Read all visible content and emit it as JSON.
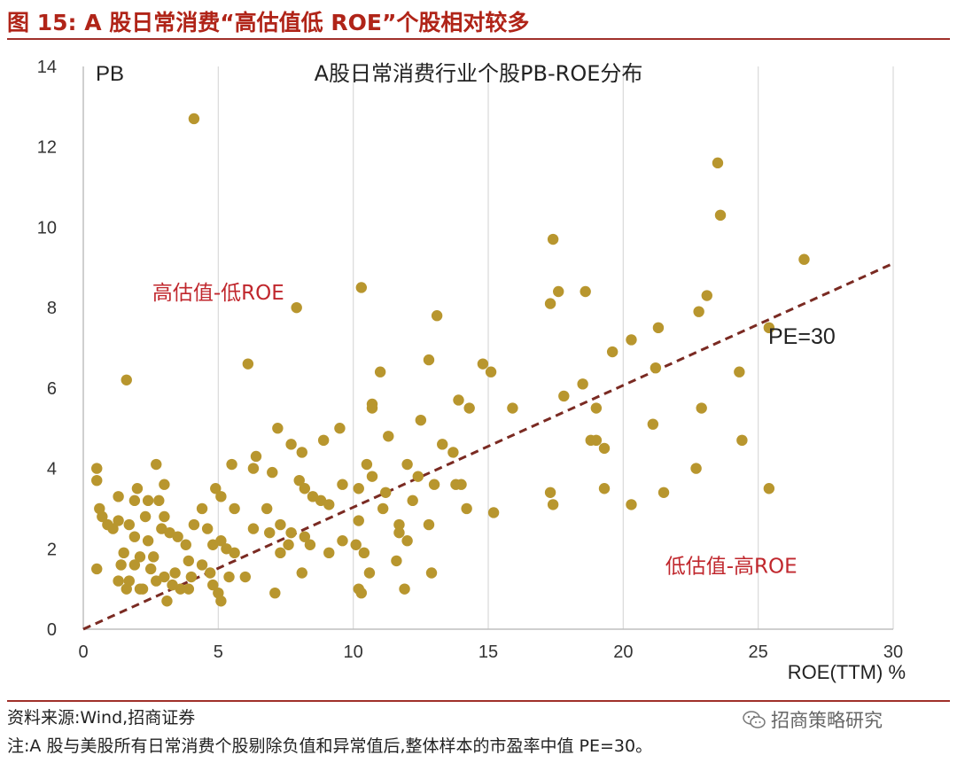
{
  "figure": {
    "title": "图 15:  A 股日常消费“高估值低 ROE”个股相对较多",
    "source": "资料来源:Wind,招商证券",
    "note": "注:A 股与美股所有日常消费个股剔除负值和异常值后,整体样本的市盈率中值 PE=30。",
    "watermark": "招商策略研究",
    "watermark_icon": "wechat-icon"
  },
  "colors": {
    "title": "#b02418",
    "rule": "#a0302a",
    "point": "#b8962e",
    "trend": "#7a2a22",
    "annotation": "#c0272d",
    "grid": "#d9d9d9"
  },
  "chart_data": {
    "type": "scatter",
    "title": "A股日常消费行业个股PB-ROE分布",
    "ylabel": "PB",
    "xlabel": "ROE(TTM) %",
    "xlim": [
      0,
      30
    ],
    "ylim": [
      0,
      14
    ],
    "xticks": [
      0,
      5,
      10,
      15,
      20,
      25,
      30
    ],
    "yticks": [
      0,
      2,
      4,
      6,
      8,
      10,
      12,
      14
    ],
    "grid": "vertical",
    "trendline": {
      "label": "PE=30",
      "style": "dashed",
      "from": [
        0,
        0
      ],
      "to": [
        30,
        9.1
      ]
    },
    "annotations": [
      {
        "text": "高估值-低ROE",
        "x": 5,
        "y": 8.2
      },
      {
        "text": "低估值-高ROE",
        "x": 24,
        "y": 1.4
      }
    ],
    "points": [
      [
        4.1,
        12.7
      ],
      [
        23.5,
        11.6
      ],
      [
        23.6,
        10.3
      ],
      [
        26.7,
        9.2
      ],
      [
        17.4,
        9.7
      ],
      [
        10.3,
        8.5
      ],
      [
        17.6,
        8.4
      ],
      [
        18.6,
        8.4
      ],
      [
        23.1,
        8.3
      ],
      [
        7.9,
        8.0
      ],
      [
        17.3,
        8.1
      ],
      [
        13.1,
        7.8
      ],
      [
        22.8,
        7.9
      ],
      [
        25.4,
        7.5
      ],
      [
        21.3,
        7.5
      ],
      [
        20.3,
        7.2
      ],
      [
        19.6,
        6.9
      ],
      [
        12.8,
        6.7
      ],
      [
        6.1,
        6.6
      ],
      [
        11.0,
        6.4
      ],
      [
        14.8,
        6.6
      ],
      [
        15.1,
        6.4
      ],
      [
        21.2,
        6.5
      ],
      [
        24.3,
        6.4
      ],
      [
        1.6,
        6.2
      ],
      [
        18.5,
        6.1
      ],
      [
        17.8,
        5.8
      ],
      [
        13.9,
        5.7
      ],
      [
        10.7,
        5.6
      ],
      [
        10.7,
        5.5
      ],
      [
        14.3,
        5.5
      ],
      [
        15.9,
        5.5
      ],
      [
        19.0,
        5.5
      ],
      [
        22.9,
        5.5
      ],
      [
        12.5,
        5.2
      ],
      [
        21.1,
        5.1
      ],
      [
        7.2,
        5.0
      ],
      [
        9.5,
        5.0
      ],
      [
        11.3,
        4.8
      ],
      [
        8.9,
        4.7
      ],
      [
        7.7,
        4.6
      ],
      [
        13.3,
        4.6
      ],
      [
        18.8,
        4.7
      ],
      [
        19.0,
        4.7
      ],
      [
        19.3,
        4.5
      ],
      [
        24.4,
        4.7
      ],
      [
        6.4,
        4.3
      ],
      [
        8.1,
        4.4
      ],
      [
        13.7,
        4.4
      ],
      [
        2.7,
        4.1
      ],
      [
        5.5,
        4.1
      ],
      [
        10.5,
        4.1
      ],
      [
        12.0,
        4.1
      ],
      [
        0.5,
        4.0
      ],
      [
        6.3,
        4.0
      ],
      [
        22.7,
        4.0
      ],
      [
        7.0,
        3.9
      ],
      [
        0.5,
        3.7
      ],
      [
        8.0,
        3.7
      ],
      [
        10.7,
        3.8
      ],
      [
        12.4,
        3.8
      ],
      [
        2.0,
        3.5
      ],
      [
        3.0,
        3.6
      ],
      [
        4.9,
        3.5
      ],
      [
        8.2,
        3.5
      ],
      [
        9.6,
        3.6
      ],
      [
        10.2,
        3.5
      ],
      [
        13.0,
        3.6
      ],
      [
        13.8,
        3.6
      ],
      [
        14.0,
        3.6
      ],
      [
        19.3,
        3.5
      ],
      [
        25.4,
        3.5
      ],
      [
        8.5,
        3.3
      ],
      [
        11.2,
        3.4
      ],
      [
        12.2,
        3.2
      ],
      [
        17.3,
        3.4
      ],
      [
        21.5,
        3.4
      ],
      [
        1.3,
        3.3
      ],
      [
        1.9,
        3.2
      ],
      [
        2.4,
        3.2
      ],
      [
        2.8,
        3.2
      ],
      [
        5.1,
        3.3
      ],
      [
        8.8,
        3.2
      ],
      [
        9.1,
        3.1
      ],
      [
        17.4,
        3.1
      ],
      [
        20.3,
        3.1
      ],
      [
        0.6,
        3.0
      ],
      [
        4.4,
        3.0
      ],
      [
        5.6,
        3.0
      ],
      [
        6.8,
        3.0
      ],
      [
        11.1,
        3.0
      ],
      [
        14.2,
        3.0
      ],
      [
        15.2,
        2.9
      ],
      [
        0.7,
        2.8
      ],
      [
        2.3,
        2.8
      ],
      [
        3.0,
        2.8
      ],
      [
        4.1,
        2.6
      ],
      [
        4.6,
        2.5
      ],
      [
        6.3,
        2.5
      ],
      [
        6.9,
        2.4
      ],
      [
        7.3,
        2.6
      ],
      [
        10.2,
        2.7
      ],
      [
        11.7,
        2.6
      ],
      [
        12.8,
        2.6
      ],
      [
        0.9,
        2.6
      ],
      [
        1.1,
        2.5
      ],
      [
        1.3,
        2.7
      ],
      [
        1.7,
        2.6
      ],
      [
        2.9,
        2.5
      ],
      [
        3.2,
        2.4
      ],
      [
        3.5,
        2.3
      ],
      [
        5.1,
        2.2
      ],
      [
        7.7,
        2.4
      ],
      [
        8.2,
        2.3
      ],
      [
        9.6,
        2.2
      ],
      [
        11.7,
        2.4
      ],
      [
        1.9,
        2.3
      ],
      [
        2.4,
        2.2
      ],
      [
        3.8,
        2.1
      ],
      [
        4.8,
        2.1
      ],
      [
        5.3,
        2.0
      ],
      [
        7.6,
        2.1
      ],
      [
        8.4,
        2.1
      ],
      [
        10.1,
        2.1
      ],
      [
        12.0,
        2.2
      ],
      [
        1.5,
        1.9
      ],
      [
        2.1,
        1.8
      ],
      [
        2.6,
        1.8
      ],
      [
        3.9,
        1.7
      ],
      [
        4.4,
        1.6
      ],
      [
        5.6,
        1.9
      ],
      [
        7.3,
        1.9
      ],
      [
        9.1,
        1.9
      ],
      [
        10.4,
        1.9
      ],
      [
        11.6,
        1.7
      ],
      [
        1.4,
        1.6
      ],
      [
        1.9,
        1.6
      ],
      [
        2.5,
        1.5
      ],
      [
        3.0,
        1.3
      ],
      [
        3.4,
        1.4
      ],
      [
        4.0,
        1.3
      ],
      [
        4.7,
        1.4
      ],
      [
        5.4,
        1.3
      ],
      [
        6.0,
        1.3
      ],
      [
        8.1,
        1.4
      ],
      [
        10.6,
        1.4
      ],
      [
        12.9,
        1.4
      ],
      [
        0.5,
        1.5
      ],
      [
        1.3,
        1.2
      ],
      [
        1.7,
        1.2
      ],
      [
        2.2,
        1.0
      ],
      [
        2.7,
        1.2
      ],
      [
        3.3,
        1.1
      ],
      [
        3.9,
        1.0
      ],
      [
        4.8,
        1.1
      ],
      [
        1.6,
        1.0
      ],
      [
        2.1,
        1.0
      ],
      [
        3.6,
        1.0
      ],
      [
        7.1,
        0.9
      ],
      [
        10.2,
        1.0
      ],
      [
        10.3,
        0.9
      ],
      [
        11.9,
        1.0
      ],
      [
        3.1,
        0.7
      ],
      [
        5.1,
        0.7
      ],
      [
        5.0,
        0.9
      ]
    ]
  }
}
